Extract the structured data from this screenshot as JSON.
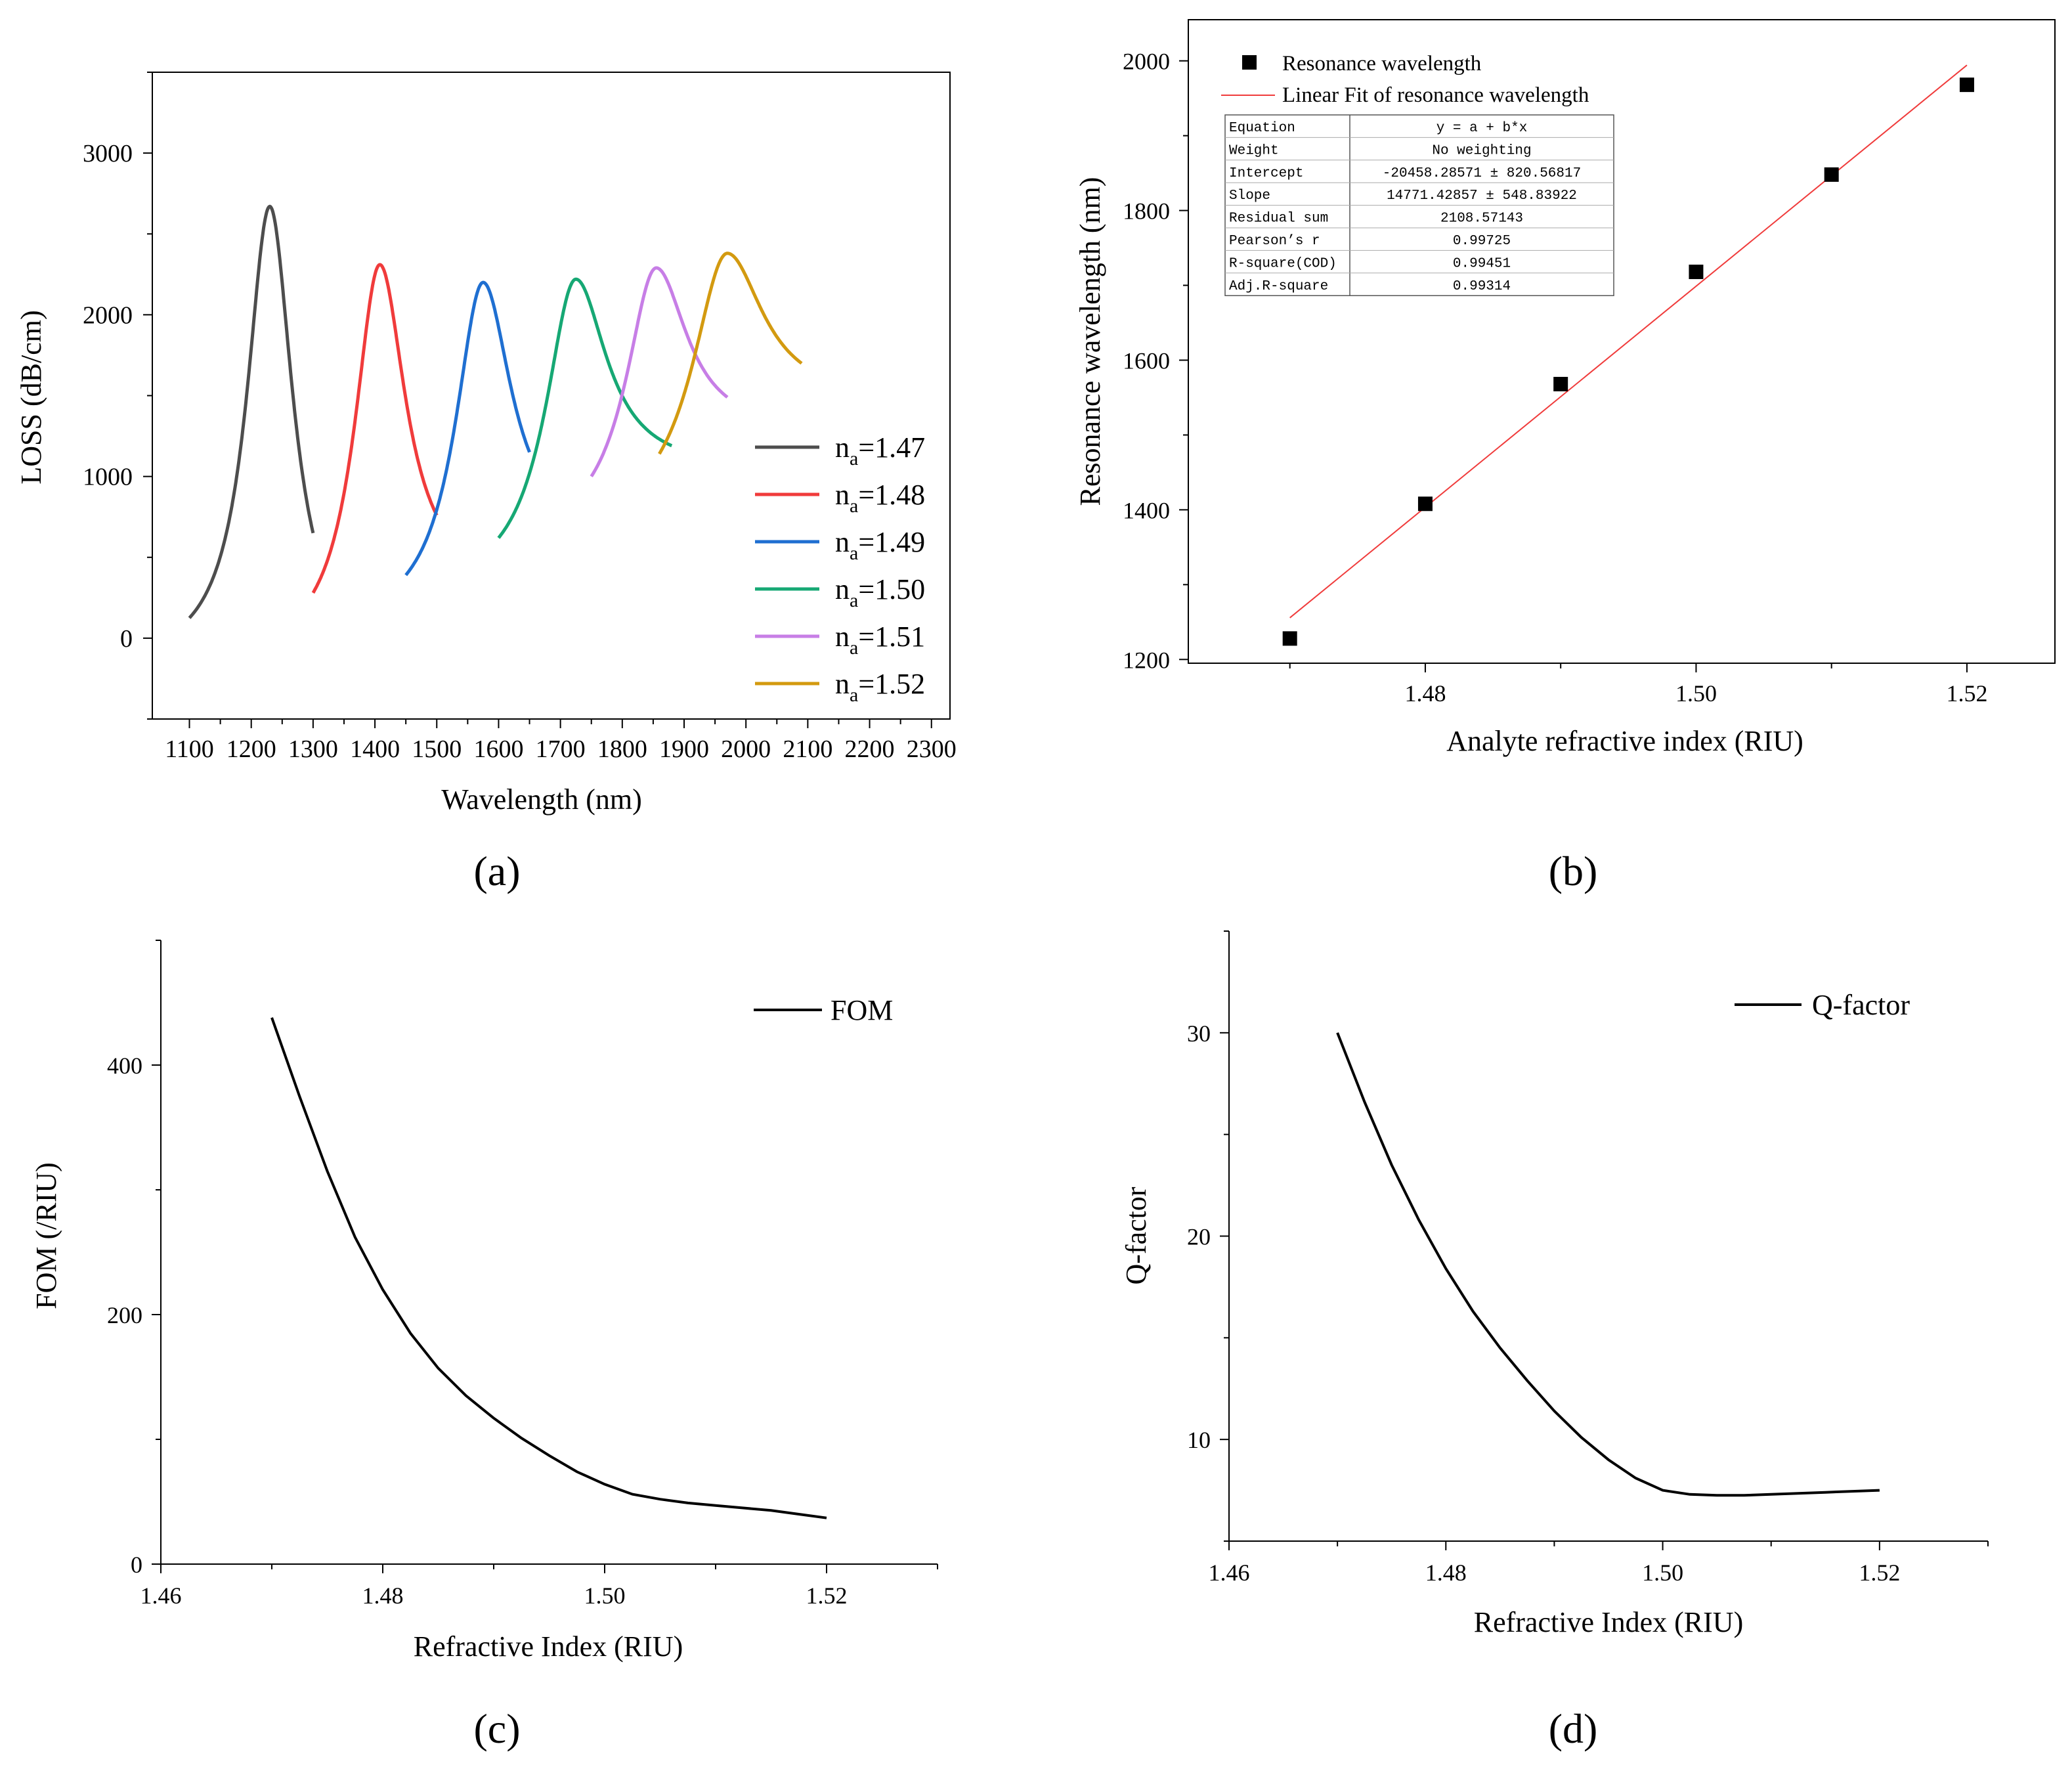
{
  "figure_labels": [
    "(a)",
    "(b)",
    "(c)",
    "(d)"
  ],
  "chart_data": [
    {
      "id": "a",
      "type": "line",
      "title": "",
      "xlabel": "Wavelength (nm)",
      "ylabel": "LOSS (dB/cm)",
      "xlim": [
        1040,
        2330
      ],
      "ylim": [
        -500,
        3500
      ],
      "xticks": [
        1100,
        1200,
        1300,
        1400,
        1500,
        1600,
        1700,
        1800,
        1900,
        2000,
        2100,
        2200,
        2300
      ],
      "yticks": [
        0,
        1000,
        2000,
        3000
      ],
      "legend_position": "bottom-right",
      "series": [
        {
          "name": "n",
          "sub": "a",
          "suffix": "=1.47",
          "color": "#4d4d4d",
          "peak_x": 1230,
          "peak_y": 2670,
          "gamma": 45,
          "x_start": 1100,
          "x_end": 1300,
          "y_start": 125,
          "y_end": 650
        },
        {
          "name": "n",
          "sub": "a",
          "suffix": "=1.48",
          "color": "#f03b3b",
          "peak_x": 1408,
          "peak_y": 2310,
          "gamma": 50,
          "x_start": 1300,
          "x_end": 1500,
          "y_start": 280,
          "y_end": 760
        },
        {
          "name": "n",
          "sub": "a",
          "suffix": "=1.49",
          "color": "#1f6fd1",
          "peak_x": 1575,
          "peak_y": 2200,
          "gamma": 55,
          "x_start": 1450,
          "x_end": 1650,
          "y_start": 390,
          "y_end": 1150
        },
        {
          "name": "n",
          "sub": "a",
          "suffix": "=1.50",
          "color": "#16a874",
          "peak_x": 1725,
          "peak_y": 2220,
          "gamma": 60,
          "x_start": 1600,
          "x_end": 1880,
          "y_start": 620,
          "y_end": 1190
        },
        {
          "name": "n",
          "sub": "a",
          "suffix": "=1.51",
          "color": "#c77ee6",
          "peak_x": 1855,
          "peak_y": 2290,
          "gamma": 60,
          "x_start": 1750,
          "x_end": 1970,
          "y_start": 1000,
          "y_end": 1490
        },
        {
          "name": "n",
          "sub": "a",
          "suffix": "=1.52",
          "color": "#d39a10",
          "peak_x": 1970,
          "peak_y": 2380,
          "gamma": 70,
          "x_start": 1860,
          "x_end": 2090,
          "y_start": 1140,
          "y_end": 1700
        }
      ]
    },
    {
      "id": "b",
      "type": "scatter",
      "title": "",
      "xlabel": "Analyte refractive index (RIU)",
      "ylabel": "Resonance wavelength (nm)",
      "xlim": [
        1.4625,
        1.5265
      ],
      "ylim": [
        1195,
        2055
      ],
      "xticks": [
        "1.48",
        "1.50",
        "1.52"
      ],
      "yticks": [
        1200,
        1400,
        1600,
        1800,
        2000
      ],
      "legend_position": "top-left",
      "points": {
        "name": "Resonance wavelength",
        "x": [
          1.47,
          1.48,
          1.49,
          1.5,
          1.51,
          1.52
        ],
        "y": [
          1228,
          1408,
          1568,
          1718,
          1848,
          1968
        ]
      },
      "fit": {
        "name": "Linear Fit of resonance wavelength",
        "color": "#f03b3b",
        "intercept": -20458.28571,
        "slope": 14771.42857,
        "x_range": [
          1.47,
          1.52
        ]
      },
      "fit_table": [
        [
          "Equation",
          "y = a + b*x"
        ],
        [
          "Weight",
          "No weighting"
        ],
        [
          "Intercept",
          "-20458.28571 ± 820.56817"
        ],
        [
          "Slope",
          "14771.42857 ± 548.83922"
        ],
        [
          "Residual sum",
          "2108.57143"
        ],
        [
          "Pearson’s r",
          "0.99725"
        ],
        [
          "R-square(COD)",
          "0.99451"
        ],
        [
          "Adj.R-square",
          "0.99314"
        ]
      ]
    },
    {
      "id": "c",
      "type": "line",
      "title": "",
      "xlabel": "Refractive Index (RIU)",
      "ylabel": "FOM (/RIU)",
      "xlim": [
        1.46,
        1.53
      ],
      "ylim": [
        0,
        500
      ],
      "xticks": [
        "1.46",
        "1.48",
        "1.50",
        "1.52"
      ],
      "yticks": [
        0,
        200,
        400
      ],
      "legend_position": "top-right",
      "series": [
        {
          "name": "FOM",
          "color": "#000000",
          "x": [
            1.47,
            1.4725,
            1.475,
            1.4775,
            1.48,
            1.4825,
            1.485,
            1.4875,
            1.49,
            1.4925,
            1.495,
            1.4975,
            1.5,
            1.5025,
            1.505,
            1.5075,
            1.51,
            1.5125,
            1.515,
            1.5175,
            1.52
          ],
          "y": [
            438,
            375,
            315,
            262,
            220,
            185,
            157,
            135,
            117,
            101,
            87,
            74,
            64,
            56,
            52,
            49,
            47,
            45,
            43,
            40,
            37
          ]
        }
      ]
    },
    {
      "id": "d",
      "type": "line",
      "title": "",
      "xlabel": "Refractive Index (RIU)",
      "ylabel": "Q-factor",
      "xlim": [
        1.46,
        1.53
      ],
      "ylim": [
        5,
        35
      ],
      "xticks": [
        "1.46",
        "1.48",
        "1.50",
        "1.52"
      ],
      "yticks": [
        10,
        20,
        30
      ],
      "legend_position": "top-right",
      "series": [
        {
          "name": "Q-factor",
          "color": "#000000",
          "x": [
            1.47,
            1.4725,
            1.475,
            1.4775,
            1.48,
            1.4825,
            1.485,
            1.4875,
            1.49,
            1.4925,
            1.495,
            1.4975,
            1.5,
            1.5025,
            1.505,
            1.5075,
            1.51,
            1.5125,
            1.515,
            1.5175,
            1.52
          ],
          "y": [
            30,
            26.6,
            23.5,
            20.8,
            18.4,
            16.3,
            14.5,
            12.9,
            11.4,
            10.1,
            9.0,
            8.1,
            7.5,
            7.3,
            7.25,
            7.25,
            7.3,
            7.35,
            7.4,
            7.45,
            7.5
          ]
        }
      ]
    }
  ]
}
